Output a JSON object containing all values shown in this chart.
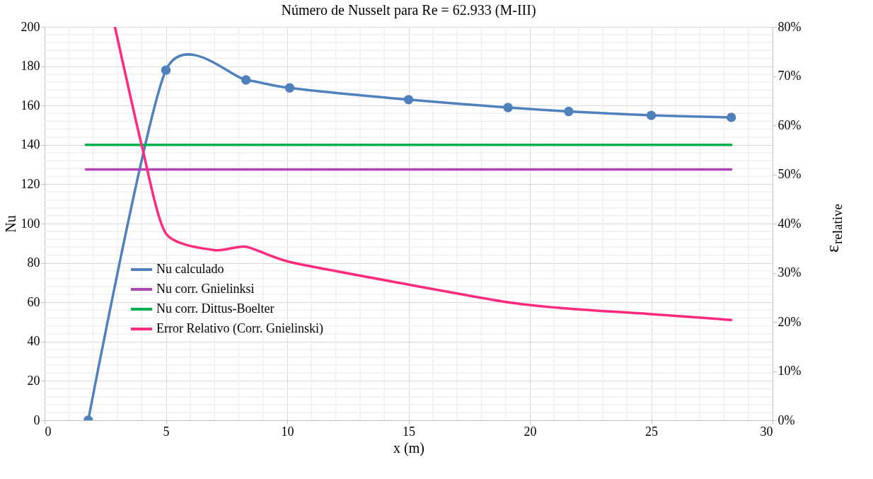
{
  "chart_data": {
    "type": "line",
    "title": "Número de Nusselt para Re = 62.933 (M-III)",
    "xlabel": "x (m)",
    "ylabel": "Nu",
    "y2label": "ε$_{relative}$",
    "xlim": [
      0,
      30
    ],
    "xticks": [
      0,
      5,
      10,
      15,
      20,
      25,
      30
    ],
    "ylim": [
      0,
      200
    ],
    "yticks": [
      0,
      20,
      40,
      60,
      80,
      100,
      120,
      140,
      160,
      180,
      200
    ],
    "y2lim": [
      0,
      80
    ],
    "y2ticks": [
      {
        "value": 0,
        "label": "0%"
      },
      {
        "value": 10,
        "label": "10%"
      },
      {
        "value": 20,
        "label": "20%"
      },
      {
        "value": 30,
        "label": "30%"
      },
      {
        "value": 40,
        "label": "40%"
      },
      {
        "value": 50,
        "label": "50%"
      },
      {
        "value": 60,
        "label": "60%"
      },
      {
        "value": 70,
        "label": "70%"
      },
      {
        "value": 80,
        "label": "80%"
      }
    ],
    "grid": true,
    "legend": "bottom left",
    "line_style": "solid",
    "series": [
      {
        "name": "Nu calculado",
        "color": "#4f81bd",
        "marker": "circle",
        "x": [
          1.8,
          5,
          8.3,
          10.1,
          15,
          19.1,
          21.6,
          25,
          28.3
        ],
        "values": [
          0,
          178,
          173,
          169,
          163,
          159,
          157,
          155,
          154
        ]
      },
      {
        "name": "Nu corr. Gnielinksi",
        "color": "#b145b6",
        "x": [
          1.7,
          28.3
        ],
        "values": [
          127.5,
          127.5
        ]
      },
      {
        "name": "Nu corr. Dittus-Boelter",
        "color": "#00b050",
        "x": [
          1.7,
          28.3
        ],
        "values": [
          140,
          140
        ]
      },
      {
        "name": "Error Relativo (Corr. Gnielinski)",
        "color": "#ff2a7f",
        "axis": "y2",
        "x": [
          2.9,
          4,
          5,
          7,
          8.3,
          10.1,
          15,
          19.1,
          21.6,
          25,
          28.3
        ],
        "values": [
          80,
          56,
          38,
          34.6,
          35.3,
          32.2,
          27.6,
          24,
          22.7,
          21.6,
          20.4
        ]
      }
    ]
  }
}
